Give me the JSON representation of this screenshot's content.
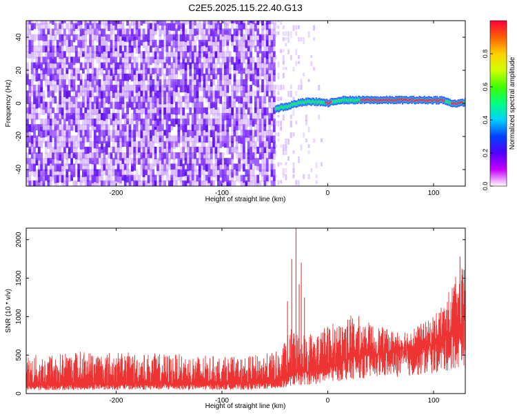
{
  "title": "C2E5.2025.115.22.40.G13",
  "chart_data": [
    {
      "type": "heatmap",
      "name": "spectrogram",
      "xlabel": "Height of straight line (km)",
      "ylabel": "Frequency (Hz)",
      "xlim": [
        -285,
        130
      ],
      "ylim": [
        -50,
        50
      ],
      "xticks": [
        -200,
        -100,
        0,
        100
      ],
      "yticks": [
        -40,
        -20,
        0,
        20,
        40
      ],
      "colorbar": {
        "label": "Normalized spectral amplitude",
        "range": [
          0,
          1
        ],
        "ticks": [
          "0.0",
          "0.2",
          "0.4",
          "0.6",
          "0.8"
        ],
        "colors": [
          "#ffffff",
          "#c800ff",
          "#5000ff",
          "#0040ff",
          "#00d0ff",
          "#00ff80",
          "#40ff00",
          "#d0ff00",
          "#ffd000",
          "#ff6000",
          "#ff0040"
        ]
      },
      "noise_region": {
        "x_from": -285,
        "x_to": -50,
        "sparse_to": -5
      },
      "signal_band": [
        {
          "x": -50,
          "y": -3
        },
        {
          "x": -40,
          "y": -2
        },
        {
          "x": -30,
          "y": 0
        },
        {
          "x": -20,
          "y": 1
        },
        {
          "x": -10,
          "y": 1
        },
        {
          "x": 0,
          "y": 0
        },
        {
          "x": 5,
          "y": 1
        },
        {
          "x": 10,
          "y": 2
        },
        {
          "x": 40,
          "y": 2
        },
        {
          "x": 80,
          "y": 2
        },
        {
          "x": 108,
          "y": 2
        },
        {
          "x": 112,
          "y": 1
        },
        {
          "x": 118,
          "y": 0
        },
        {
          "x": 125,
          "y": 0
        },
        {
          "x": 130,
          "y": 1
        }
      ]
    },
    {
      "type": "line",
      "name": "snr",
      "xlabel": "Height of straight line (km)",
      "ylabel": "SNR (10 * v/v)",
      "xlim": [
        -285,
        130
      ],
      "ylim": [
        0,
        2150
      ],
      "xticks": [
        -200,
        -100,
        0,
        100
      ],
      "yticks": [
        0,
        500,
        1000,
        1500,
        2000
      ],
      "color": "#ee3333",
      "envelope": [
        {
          "x": -285,
          "low": 100,
          "high": 500
        },
        {
          "x": -230,
          "low": 120,
          "high": 560
        },
        {
          "x": -150,
          "low": 120,
          "high": 520
        },
        {
          "x": -80,
          "low": 120,
          "high": 470
        },
        {
          "x": -45,
          "low": 150,
          "high": 560
        },
        {
          "x": -35,
          "low": 250,
          "high": 850
        },
        {
          "x": -20,
          "low": 280,
          "high": 800
        },
        {
          "x": -10,
          "low": 300,
          "high": 820
        },
        {
          "x": 0,
          "low": 350,
          "high": 900
        },
        {
          "x": 10,
          "low": 400,
          "high": 950
        },
        {
          "x": 25,
          "low": 480,
          "high": 1050
        },
        {
          "x": 40,
          "low": 500,
          "high": 920
        },
        {
          "x": 60,
          "low": 540,
          "high": 820
        },
        {
          "x": 80,
          "low": 560,
          "high": 860
        },
        {
          "x": 95,
          "low": 620,
          "high": 950
        },
        {
          "x": 110,
          "low": 700,
          "high": 1200
        },
        {
          "x": 120,
          "low": 800,
          "high": 1500
        },
        {
          "x": 130,
          "low": 900,
          "high": 1700
        }
      ],
      "spikes": [
        {
          "x": -38,
          "y": 1200
        },
        {
          "x": -34,
          "y": 1750
        },
        {
          "x": -30,
          "y": 2150
        },
        {
          "x": -27,
          "y": 1420
        },
        {
          "x": -25,
          "y": 1700
        },
        {
          "x": -22,
          "y": 1250
        },
        {
          "x": 125,
          "y": 1780
        }
      ]
    }
  ]
}
